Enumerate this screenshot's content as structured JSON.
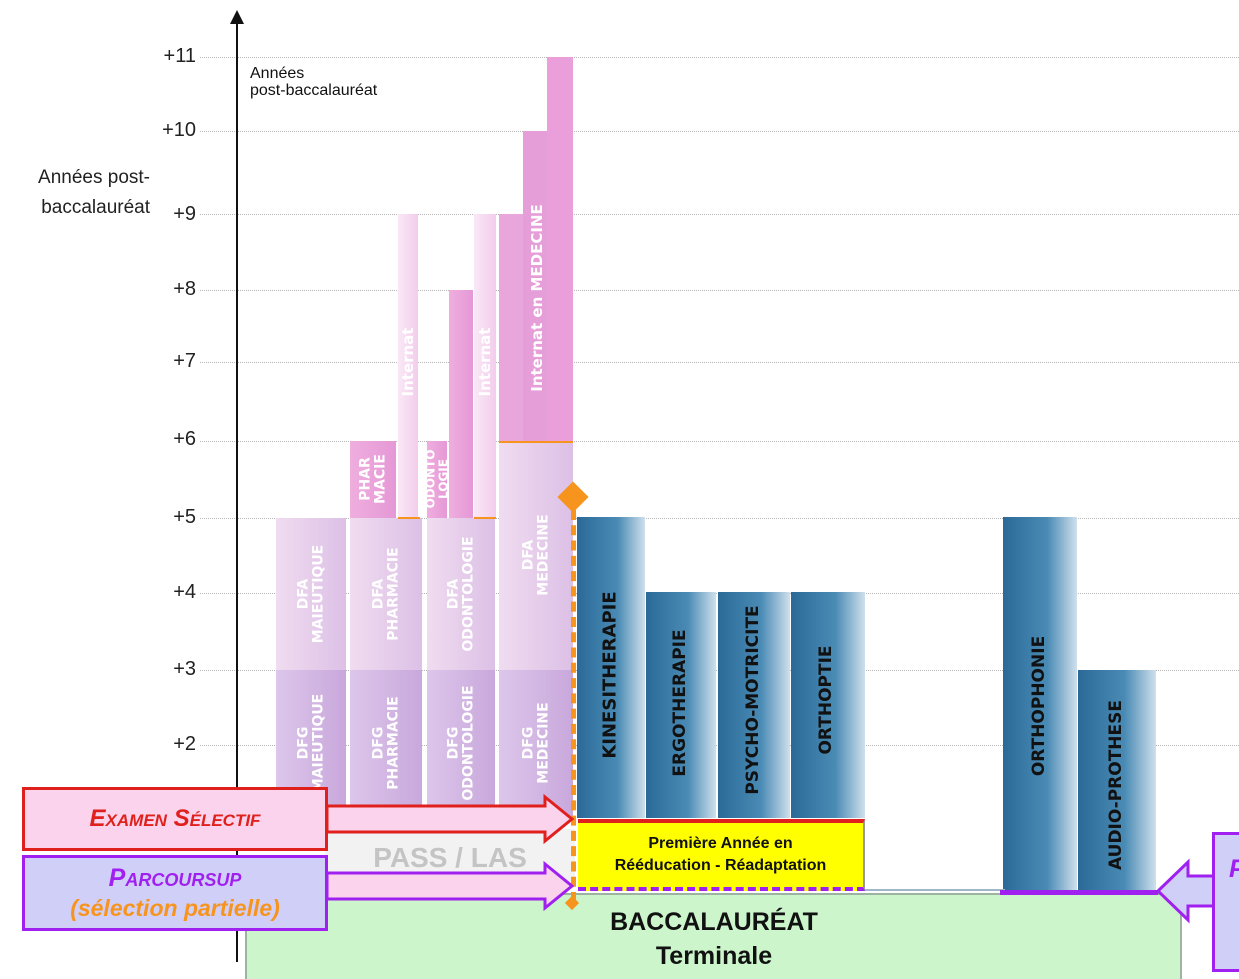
{
  "y_axis": {
    "title_line1": "Années post-",
    "title_line2": "baccalauréat",
    "ticks": [
      "+2",
      "+3",
      "+4",
      "+5",
      "+6",
      "+7",
      "+8",
      "+9",
      "+10",
      "+11"
    ]
  },
  "legend_note": {
    "line1": "Années",
    "line2": "post-baccalauréat"
  },
  "columns": {
    "dfg_maieutique": {
      "line1": "DFG",
      "line2": "MAIEUTIQUE"
    },
    "dfa_maieutique": {
      "line1": "DFA",
      "line2": "MAIEUTIQUE"
    },
    "dfg_pharmacie": {
      "line1": "DFG",
      "line2": "PHARMACIE"
    },
    "dfa_pharmacie": {
      "line1": "DFA",
      "line2": "PHARMACIE"
    },
    "pharmacie": {
      "line1": "PHAR",
      "line2": "MACIE"
    },
    "internat_pharmacie": "Internat",
    "dfg_odontologie": {
      "line1": "DFG",
      "line2": "ODONTOLOGIE"
    },
    "dfa_odontologie": {
      "line1": "DFA",
      "line2": "ODONTOLOGIE"
    },
    "odontologie": {
      "line1": "ODONTO",
      "line2": "LOGIE"
    },
    "internat_odontologie": "Internat",
    "dfg_medecine": {
      "line1": "DFG",
      "line2": "MEDECINE"
    },
    "dfa_medecine": {
      "line1": "DFA",
      "line2": "MEDECINE"
    },
    "internat_medecine": "Internat en MEDECINE"
  },
  "paramedical": [
    "KINESITHERAPIE",
    "ERGOTHERAPIE",
    "PSYCHO-MOTRICITE",
    "ORTHOPTIE",
    "ORTHOPHONIE",
    "AUDIO-PROTHESE"
  ],
  "pass_las": "PASS / LAS",
  "premiere_annee": {
    "line1": "Première Année en",
    "line2": "Rééducation - Réadaptation"
  },
  "baccalaureat": {
    "line1": "BACCALAURÉAT",
    "line2": "Terminale"
  },
  "callouts": {
    "examen": "Examen Sélectif",
    "parcoursup": "Parcoursup",
    "selection": "(sélection partielle)",
    "right_fragment": "P"
  },
  "colors": {
    "pink": "#e9a9dc",
    "pale_pink": "#f1d3ee",
    "lavender": "#d8c0e6",
    "teal": "#2f74a0",
    "orange": "#f7941d",
    "purple": "#a020f0",
    "red": "#e0201c",
    "bac_green": "#ccf5cc",
    "yellow": "#ffff00"
  }
}
